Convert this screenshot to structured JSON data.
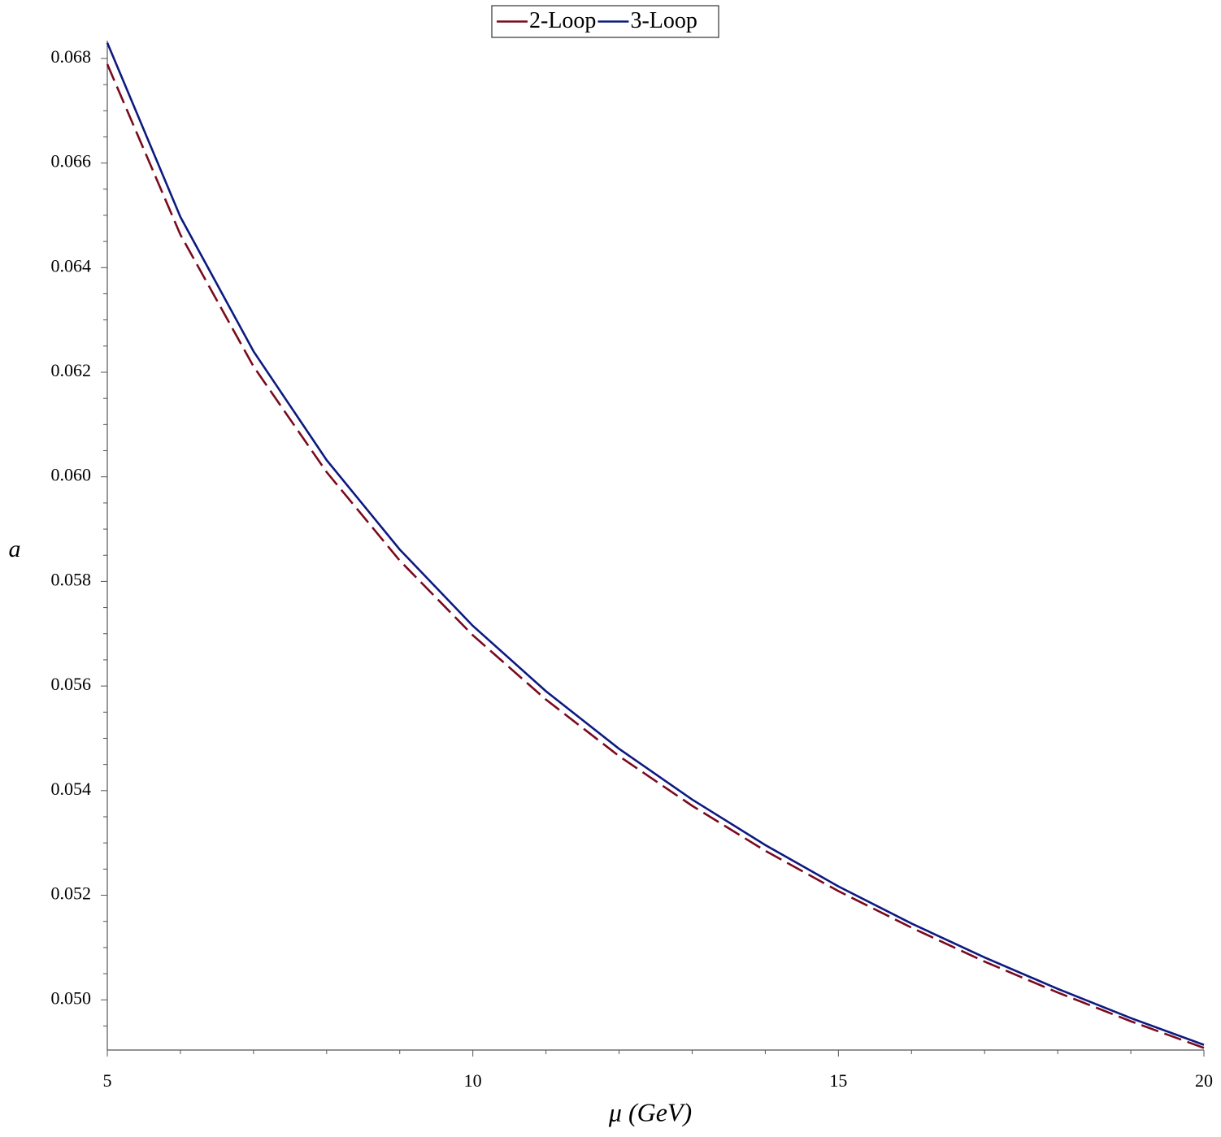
{
  "chart_data": {
    "type": "line",
    "xlabel": "μ (GeV)",
    "ylabel": "a",
    "x": [
      5,
      6,
      7,
      8,
      9,
      10,
      11,
      12,
      13,
      14,
      15,
      16,
      17,
      18,
      19,
      20
    ],
    "series": [
      {
        "name": "2-Loop",
        "color": "#7a0a1e",
        "line_style": "dash",
        "values": [
          0.06789,
          0.06463,
          0.06211,
          0.06009,
          0.0584,
          0.05697,
          0.05574,
          0.05466,
          0.05371,
          0.05285,
          0.05208,
          0.05138,
          0.05073,
          0.05014,
          0.04959,
          0.04908
        ]
      },
      {
        "name": "3-Loop",
        "color": "#0c1a80",
        "line_style": "solid",
        "values": [
          0.0683,
          0.06497,
          0.0624,
          0.06032,
          0.05861,
          0.05715,
          0.0559,
          0.0548,
          0.05383,
          0.05296,
          0.05217,
          0.05146,
          0.05081,
          0.05021,
          0.04965,
          0.04914
        ]
      }
    ],
    "xlim": [
      5,
      20
    ],
    "xticks": [
      5,
      10,
      15,
      20
    ],
    "xminorticks": [
      6,
      7,
      8,
      9,
      11,
      12,
      13,
      14,
      16,
      17,
      18,
      19
    ],
    "ylim": [
      0.04904,
      0.06834
    ],
    "yticks": [
      {
        "value": 0.05,
        "label": "0.050"
      },
      0.052,
      0.054,
      0.056,
      0.058,
      {
        "value": 0.06,
        "label": "0.060"
      },
      0.062,
      0.064,
      0.066,
      0.068
    ],
    "yminorticks": [
      0.0495,
      0.0505,
      0.051,
      0.0515,
      0.0525,
      0.053,
      0.0535,
      0.0545,
      0.055,
      0.0555,
      0.0565,
      0.057,
      0.0575,
      0.0585,
      0.059,
      0.0595,
      0.0605,
      0.061,
      0.0615,
      0.0625,
      0.063,
      0.0635,
      0.0645,
      0.065,
      0.0655,
      0.0665,
      0.067,
      0.0675
    ],
    "grid": false,
    "legend": "top"
  }
}
